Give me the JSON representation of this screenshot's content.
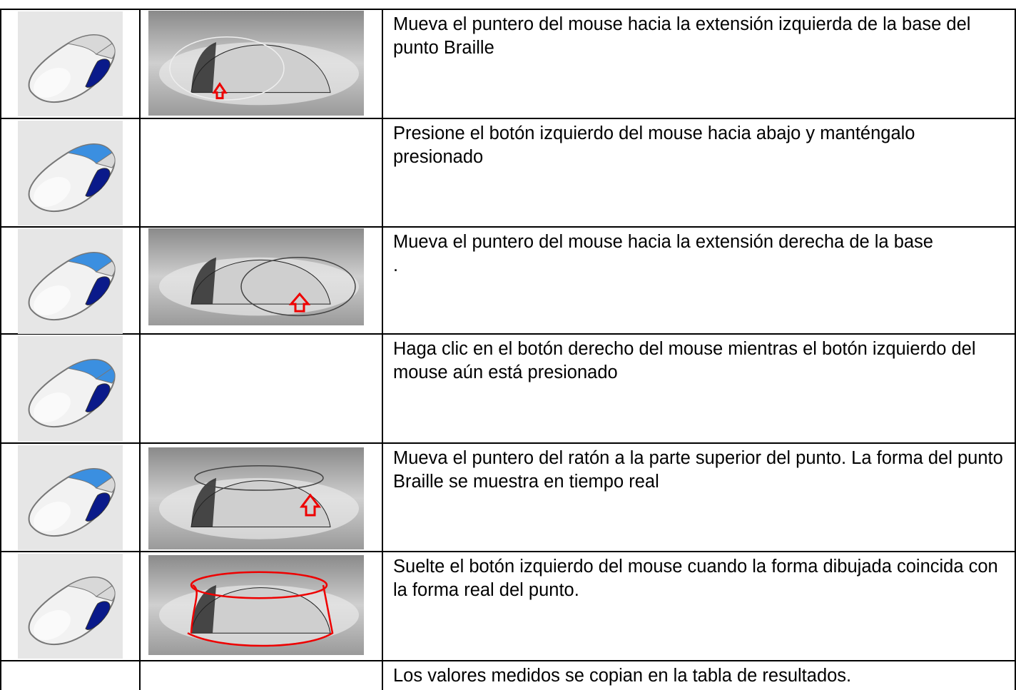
{
  "table": {
    "rows": [
      {
        "text": "Mueva el puntero del mouse hacia la extensión izquierda de la base del punto Braille"
      },
      {
        "text": "Presione el botón izquierdo del mouse hacia abajo y manténgalo presionado"
      },
      {
        "text": "Mueva el puntero del mouse hacia la extensión derecha de la base",
        "note": "."
      },
      {
        "text": "Haga clic en el botón derecho del mouse mientras el botón izquierdo del mouse aún está presionado"
      },
      {
        "text": "Mueva el puntero del ratón a la parte superior del punto. La forma del punto Braille se muestra en tiempo real"
      },
      {
        "text": "Suelte el botón izquierdo del mouse cuando la forma dibujada coincida con la forma real del punto."
      },
      {
        "text": "Los valores medidos se copian en la tabla de resultados."
      }
    ]
  }
}
